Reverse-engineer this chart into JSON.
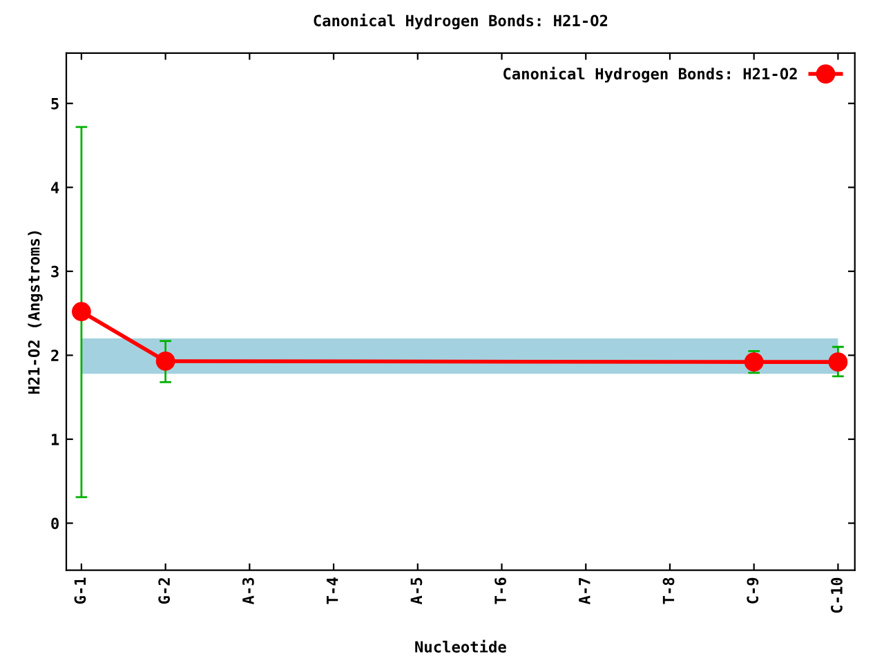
{
  "chart_data": {
    "type": "line",
    "title": "Canonical Hydrogen Bonds: H21-O2",
    "xlabel": "Nucleotide",
    "ylabel": "H21-O2 (Angstroms)",
    "categories": [
      "G-1",
      "G-2",
      "A-3",
      "T-4",
      "A-5",
      "T-6",
      "A-7",
      "T-8",
      "C-9",
      "C-10"
    ],
    "series": [
      {
        "name": "Canonical Hydrogen Bonds: H21-O2",
        "color": "#ff0000",
        "values": [
          2.52,
          1.93,
          null,
          null,
          null,
          null,
          null,
          null,
          1.92,
          1.92
        ],
        "errors": [
          [
            0.31,
            4.72
          ],
          [
            1.68,
            2.17
          ],
          null,
          null,
          null,
          null,
          null,
          null,
          [
            1.79,
            2.05
          ],
          [
            1.75,
            2.1
          ]
        ]
      }
    ],
    "bands": [
      {
        "axis": "y",
        "from": 1.78,
        "to": 2.2,
        "color": "#a3d1df"
      }
    ],
    "ylim": [
      -0.56,
      5.6
    ],
    "yticks": [
      0,
      1,
      2,
      3,
      4,
      5
    ],
    "grid": false,
    "legend": "top right",
    "marker": "circle",
    "line_style": "solid"
  }
}
